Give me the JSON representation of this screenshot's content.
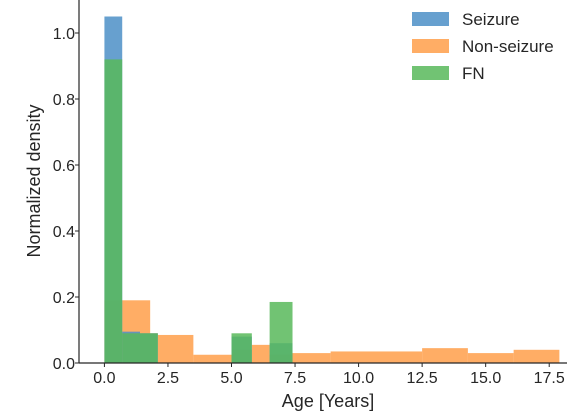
{
  "chart_data": {
    "type": "bar",
    "title": "",
    "xlabel": "Age [Years]",
    "ylabel": "Normalized density",
    "xlim": [
      -1.0,
      18.2
    ],
    "ylim": [
      0.0,
      1.1
    ],
    "grid": false,
    "legend_position": "top-right",
    "xticks": [
      {
        "value": 0.0,
        "label": "0.0"
      },
      {
        "value": 2.5,
        "label": "2.5"
      },
      {
        "value": 5.0,
        "label": "5.0"
      },
      {
        "value": 7.5,
        "label": "7.5"
      },
      {
        "value": 10.0,
        "label": "10.0"
      },
      {
        "value": 12.5,
        "label": "12.5"
      },
      {
        "value": 15.0,
        "label": "15.0"
      },
      {
        "value": 17.5,
        "label": "17.5"
      }
    ],
    "yticks": [
      {
        "value": 0.0,
        "label": "0.0"
      },
      {
        "value": 0.2,
        "label": "0.2"
      },
      {
        "value": 0.4,
        "label": "0.4"
      },
      {
        "value": 0.6,
        "label": "0.6"
      },
      {
        "value": 0.8,
        "label": "0.8"
      },
      {
        "value": 1.0,
        "label": "1.0"
      }
    ],
    "series": [
      {
        "name": "Non-seizure",
        "color": "#ff9f4a",
        "bins": [
          {
            "x0": 0.0,
            "x1": 0.7,
            "y": 0.19
          },
          {
            "x0": 0.7,
            "x1": 1.8,
            "y": 0.19
          },
          {
            "x0": 1.8,
            "x1": 2.1,
            "y": 0.09
          },
          {
            "x0": 2.1,
            "x1": 3.5,
            "y": 0.085
          },
          {
            "x0": 3.5,
            "x1": 5.0,
            "y": 0.025
          },
          {
            "x0": 5.0,
            "x1": 5.8,
            "y": 0.04
          },
          {
            "x0": 5.8,
            "x1": 6.5,
            "y": 0.055
          },
          {
            "x0": 6.5,
            "x1": 7.4,
            "y": 0.025
          },
          {
            "x0": 7.4,
            "x1": 8.9,
            "y": 0.03
          },
          {
            "x0": 8.9,
            "x1": 12.5,
            "y": 0.035
          },
          {
            "x0": 12.5,
            "x1": 14.3,
            "y": 0.045
          },
          {
            "x0": 14.3,
            "x1": 16.1,
            "y": 0.03
          },
          {
            "x0": 16.1,
            "x1": 17.9,
            "y": 0.04
          }
        ]
      },
      {
        "name": "Seizure",
        "color": "#4c8fc7",
        "bins": [
          {
            "x0": 0.0,
            "x1": 0.7,
            "y": 1.05
          },
          {
            "x0": 0.7,
            "x1": 1.4,
            "y": 0.095
          },
          {
            "x0": 1.4,
            "x1": 2.1,
            "y": 0.09
          },
          {
            "x0": 5.0,
            "x1": 5.8,
            "y": 0.08
          },
          {
            "x0": 6.5,
            "x1": 7.4,
            "y": 0.06
          }
        ]
      },
      {
        "name": "FN",
        "color": "#58b85a",
        "bins": [
          {
            "x0": 0.0,
            "x1": 0.7,
            "y": 0.92
          },
          {
            "x0": 0.7,
            "x1": 1.4,
            "y": 0.09
          },
          {
            "x0": 1.4,
            "x1": 2.1,
            "y": 0.09
          },
          {
            "x0": 5.0,
            "x1": 5.8,
            "y": 0.09
          },
          {
            "x0": 6.5,
            "x1": 7.4,
            "y": 0.185
          }
        ]
      }
    ],
    "legend": [
      {
        "name": "Seizure",
        "color": "#4c8fc7"
      },
      {
        "name": "Non-seizure",
        "color": "#ff9f4a"
      },
      {
        "name": "FN",
        "color": "#58b85a"
      }
    ]
  }
}
